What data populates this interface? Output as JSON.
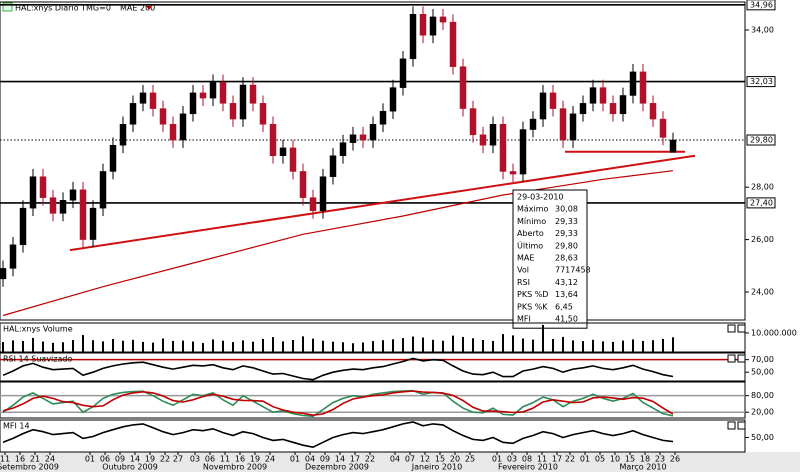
{
  "chart_data": [
    {
      "type": "candlestick",
      "title": "HAL:xnys Diário TMG=0",
      "ylim": [
        22.93,
        35.03
      ],
      "yticks": [
        {
          "value": 24,
          "label": "24,00"
        },
        {
          "value": 26,
          "label": "26,00"
        },
        {
          "value": 28,
          "label": "28,00"
        },
        {
          "value": 34,
          "label": "34,00"
        }
      ],
      "up_color": "#000000",
      "down_color": "#b0102a",
      "open": [
        24.5,
        24.9,
        25.8,
        27.2,
        28.4,
        27.6,
        27.0,
        27.5,
        27.9,
        26.0,
        27.2,
        28.6,
        29.6,
        30.4,
        31.2,
        31.6,
        31.0,
        30.4,
        29.8,
        30.8,
        31.6,
        31.4,
        32.0,
        31.2,
        30.6,
        31.9,
        31.2,
        30.4,
        29.2,
        29.5,
        28.6,
        27.6,
        27.1,
        28.4,
        29.2,
        29.7,
        30.0,
        29.8,
        30.4,
        30.9,
        31.8,
        32.9,
        34.6,
        33.8,
        34.5,
        34.3,
        32.6,
        31.0,
        30.0,
        29.6,
        30.4,
        28.6,
        28.5,
        30.2,
        30.6,
        31.6,
        31.0,
        29.8,
        30.8,
        31.2,
        31.8,
        31.2,
        30.8,
        31.5,
        32.4,
        31.2,
        30.6,
        29.33
      ],
      "high": [
        25.2,
        26.1,
        27.5,
        28.7,
        28.7,
        27.9,
        27.8,
        28.2,
        28.2,
        27.5,
        28.9,
        29.9,
        30.7,
        31.5,
        31.9,
        31.9,
        31.3,
        30.7,
        31.1,
        31.9,
        31.9,
        32.3,
        32.3,
        31.5,
        32.2,
        32.2,
        31.5,
        30.7,
        29.8,
        29.8,
        28.9,
        27.9,
        28.7,
        29.5,
        30.0,
        30.3,
        30.3,
        30.7,
        31.2,
        32.1,
        33.2,
        34.9,
        34.9,
        34.8,
        34.8,
        34.6,
        32.9,
        31.3,
        30.3,
        30.7,
        30.7,
        28.9,
        30.5,
        30.9,
        31.9,
        31.9,
        31.3,
        31.1,
        31.5,
        32.1,
        32.1,
        31.5,
        31.8,
        32.7,
        32.7,
        31.5,
        30.9,
        30.08
      ],
      "low": [
        24.2,
        24.6,
        25.5,
        26.9,
        27.3,
        26.7,
        26.7,
        27.2,
        25.7,
        25.7,
        26.9,
        28.3,
        29.3,
        30.1,
        30.9,
        30.7,
        30.1,
        29.5,
        29.5,
        30.5,
        31.1,
        31.1,
        30.9,
        30.3,
        30.3,
        30.9,
        30.1,
        28.9,
        28.9,
        28.3,
        27.3,
        26.8,
        26.8,
        28.1,
        28.9,
        29.4,
        29.5,
        29.5,
        30.1,
        30.6,
        31.5,
        32.6,
        33.5,
        33.5,
        34.0,
        32.3,
        30.7,
        29.7,
        29.3,
        29.3,
        28.3,
        28.2,
        28.2,
        29.9,
        30.3,
        30.7,
        29.5,
        29.5,
        30.5,
        30.9,
        30.9,
        30.5,
        30.5,
        31.2,
        30.9,
        30.3,
        29.6,
        29.33
      ],
      "close": [
        24.9,
        25.8,
        27.2,
        28.4,
        27.6,
        27.0,
        27.5,
        27.9,
        26.0,
        27.2,
        28.6,
        29.6,
        30.4,
        31.2,
        31.6,
        31.0,
        30.4,
        29.8,
        30.8,
        31.6,
        31.4,
        32.0,
        31.2,
        30.6,
        31.9,
        31.2,
        30.4,
        29.2,
        29.5,
        28.6,
        27.6,
        27.1,
        28.4,
        29.2,
        29.7,
        30.0,
        29.8,
        30.4,
        30.9,
        31.8,
        32.9,
        34.6,
        33.8,
        34.5,
        34.3,
        32.6,
        31.0,
        30.0,
        29.6,
        30.4,
        28.6,
        28.5,
        30.2,
        30.6,
        31.6,
        31.0,
        29.8,
        30.8,
        31.2,
        31.8,
        31.2,
        30.8,
        31.5,
        32.4,
        31.2,
        30.6,
        29.9,
        29.8
      ],
      "series": [
        {
          "name": "MAE 200",
          "color": "#c00000",
          "x": [
            0,
            10,
            20,
            30,
            40,
            45,
            50,
            55,
            60,
            67
          ],
          "values": [
            23.1,
            24.2,
            25.2,
            26.2,
            26.9,
            27.3,
            27.7,
            28.0,
            28.3,
            28.63
          ]
        }
      ],
      "trendlines": [
        {
          "color": "#d01010",
          "x": [
            6.7,
            69.2
          ],
          "values": [
            25.6,
            29.2
          ]
        },
        {
          "color": "#d01010",
          "x": [
            56.2,
            68.2
          ],
          "values": [
            29.35,
            29.35
          ]
        }
      ],
      "levels": [
        {
          "value": 34.96,
          "label": "34,96",
          "style": "solid"
        },
        {
          "value": 32.03,
          "label": "32,03",
          "style": "solid"
        },
        {
          "value": 29.8,
          "label": "29,80",
          "style": "dotted"
        },
        {
          "value": 27.4,
          "label": "27,40",
          "style": "solid"
        }
      ],
      "info_box": {
        "date": "29-03-2010",
        "rows": [
          {
            "label": "Máximo",
            "value": "30,08",
            "color": "#000000"
          },
          {
            "label": "Mínimo",
            "value": "29,33",
            "color": "#000000"
          },
          {
            "label": "Aberto",
            "value": "29,33",
            "color": "#000000"
          },
          {
            "label": "Último",
            "value": "29,80",
            "color": "#000000"
          },
          {
            "label": "MAE",
            "value": "28,63",
            "color": "#c00000"
          },
          {
            "label": "Vol",
            "value": "7717458",
            "color": "#000000"
          },
          {
            "label": "RSI",
            "value": "43,12",
            "color": "#000000"
          },
          {
            "label": "PKS %D",
            "value": "13,64",
            "color": "#c00000"
          },
          {
            "label": "PKS %K",
            "value": "6,45",
            "color": "#2e8b57"
          },
          {
            "label": "MFI",
            "value": "41,50",
            "color": "#000000"
          }
        ]
      }
    },
    {
      "type": "bar",
      "title": "HAL:xnys Volume",
      "ylim": [
        0,
        14700000
      ],
      "yticks": [
        {
          "value": 10000000,
          "label": "10.000.000"
        }
      ],
      "color": "#000000",
      "values": [
        5200000,
        6100000,
        5800000,
        7400000,
        5500000,
        4800000,
        5100000,
        6300000,
        8900000,
        6200000,
        5600000,
        6800000,
        5900000,
        6400000,
        5300000,
        4900000,
        7100000,
        5800000,
        6000000,
        5500000,
        4700000,
        6600000,
        5900000,
        5200000,
        6100000,
        5400000,
        6900000,
        7800000,
        5600000,
        6300000,
        8200000,
        7000000,
        5900000,
        5400000,
        5100000,
        4600000,
        5000000,
        5700000,
        6200000,
        6700000,
        7300000,
        8100000,
        7600000,
        6400000,
        5900000,
        8600000,
        7900000,
        7200000,
        6300000,
        5800000,
        9400000,
        8700000,
        7100000,
        6500000,
        14200000,
        6800000,
        7900000,
        6100000,
        5700000,
        6400000,
        5600000,
        5300000,
        6000000,
        6600000,
        5800000,
        6200000,
        6900000,
        7717458
      ]
    },
    {
      "type": "line",
      "title": "RSI 14 Suavizado",
      "ylim": [
        36,
        79
      ],
      "yticks": [
        {
          "value": 70,
          "label": "70,00"
        },
        {
          "value": 50,
          "label": "50,00"
        }
      ],
      "ref_lines": [
        {
          "value": 70,
          "color": "#c00000"
        }
      ],
      "series": [
        {
          "color": "#000000",
          "values": [
            45,
            52,
            60,
            64,
            58,
            54,
            55,
            56,
            45,
            50,
            56,
            60,
            63,
            65,
            66,
            62,
            58,
            55,
            58,
            61,
            60,
            62,
            57,
            54,
            60,
            57,
            52,
            47,
            48,
            44,
            40,
            38,
            45,
            50,
            53,
            55,
            54,
            57,
            59,
            63,
            67,
            72,
            68,
            70,
            69,
            60,
            52,
            47,
            46,
            50,
            43,
            43,
            52,
            55,
            59,
            56,
            50,
            55,
            57,
            60,
            56,
            54,
            57,
            61,
            55,
            51,
            46,
            43.12
          ]
        }
      ]
    },
    {
      "type": "line",
      "ylim": [
        -1,
        126
      ],
      "yticks": [
        {
          "value": 80,
          "label": "80,00"
        },
        {
          "value": 20,
          "label": "20,00"
        }
      ],
      "ref_lines": [
        {
          "value": 80,
          "color": "#999999"
        },
        {
          "value": 20,
          "color": "#999999"
        }
      ],
      "series": [
        {
          "color": "#2e8b57",
          "values": [
            20,
            45,
            75,
            90,
            70,
            50,
            55,
            60,
            20,
            40,
            70,
            85,
            92,
            95,
            96,
            80,
            60,
            45,
            65,
            85,
            80,
            90,
            65,
            45,
            80,
            60,
            40,
            20,
            25,
            15,
            8,
            5,
            30,
            55,
            70,
            80,
            75,
            85,
            90,
            95,
            97,
            98,
            85,
            92,
            90,
            60,
            35,
            20,
            18,
            35,
            12,
            10,
            40,
            55,
            75,
            65,
            40,
            60,
            70,
            85,
            70,
            60,
            70,
            88,
            55,
            35,
            15,
            6.45
          ]
        },
        {
          "color": "#c00000",
          "values": [
            25,
            35,
            50,
            70,
            78,
            70,
            58,
            55,
            45,
            40,
            43,
            65,
            82,
            90,
            94,
            90,
            79,
            62,
            57,
            65,
            77,
            85,
            78,
            67,
            63,
            62,
            60,
            40,
            28,
            20,
            16,
            9,
            14,
            30,
            52,
            68,
            75,
            80,
            83,
            90,
            94,
            97,
            93,
            92,
            89,
            81,
            62,
            38,
            24,
            24,
            22,
            19,
            21,
            35,
            57,
            65,
            60,
            55,
            57,
            72,
            75,
            72,
            67,
            73,
            71,
            59,
            35,
            13.64
          ]
        }
      ]
    },
    {
      "type": "line",
      "title": "MFI 14",
      "ylim": [
        20,
        84
      ],
      "yticks": [
        {
          "value": 50,
          "label": "50,00"
        }
      ],
      "series": [
        {
          "color": "#000000",
          "values": [
            40,
            48,
            58,
            66,
            62,
            56,
            58,
            60,
            48,
            52,
            60,
            66,
            72,
            76,
            78,
            70,
            62,
            56,
            60,
            66,
            64,
            68,
            60,
            54,
            62,
            58,
            50,
            44,
            46,
            40,
            34,
            30,
            40,
            50,
            56,
            60,
            58,
            62,
            66,
            72,
            78,
            82,
            74,
            78,
            76,
            64,
            54,
            46,
            44,
            50,
            40,
            38,
            48,
            54,
            62,
            58,
            50,
            56,
            60,
            64,
            58,
            54,
            58,
            64,
            56,
            50,
            44,
            41.5
          ]
        }
      ]
    }
  ],
  "x_axis": {
    "xlim": [
      -0.3,
      74.2
    ],
    "xticks": [
      {
        "value": 0.2,
        "label": "11"
      },
      {
        "value": 1.7,
        "label": "16"
      },
      {
        "value": 3.2,
        "label": "21"
      },
      {
        "value": 4.7,
        "label": "24"
      },
      {
        "value": 8.7,
        "label": "01"
      },
      {
        "value": 10.2,
        "label": "06"
      },
      {
        "value": 11.7,
        "label": "09"
      },
      {
        "value": 13.2,
        "label": "14"
      },
      {
        "value": 14.7,
        "label": "19"
      },
      {
        "value": 16.2,
        "label": "22"
      },
      {
        "value": 17.5,
        "label": "27"
      },
      {
        "value": 19.2,
        "label": "03"
      },
      {
        "value": 20.7,
        "label": "06"
      },
      {
        "value": 22.2,
        "label": "11"
      },
      {
        "value": 23.7,
        "label": "16"
      },
      {
        "value": 25.2,
        "label": "19"
      },
      {
        "value": 26.7,
        "label": "24"
      },
      {
        "value": 29.2,
        "label": "01"
      },
      {
        "value": 30.7,
        "label": "04"
      },
      {
        "value": 32.2,
        "label": "09"
      },
      {
        "value": 33.7,
        "label": "14"
      },
      {
        "value": 35.2,
        "label": "17"
      },
      {
        "value": 36.7,
        "label": "22"
      },
      {
        "value": 39.2,
        "label": "04"
      },
      {
        "value": 40.7,
        "label": "07"
      },
      {
        "value": 42.2,
        "label": "12"
      },
      {
        "value": 43.7,
        "label": "15"
      },
      {
        "value": 45.2,
        "label": "20"
      },
      {
        "value": 46.7,
        "label": "25"
      },
      {
        "value": 49.4,
        "label": "01"
      },
      {
        "value": 50.9,
        "label": "03"
      },
      {
        "value": 52.4,
        "label": "08"
      },
      {
        "value": 53.9,
        "label": "11"
      },
      {
        "value": 55.4,
        "label": "17"
      },
      {
        "value": 56.7,
        "label": "22"
      },
      {
        "value": 58.2,
        "label": "01"
      },
      {
        "value": 59.7,
        "label": "05"
      },
      {
        "value": 61.2,
        "label": "10"
      },
      {
        "value": 62.7,
        "label": "15"
      },
      {
        "value": 64.2,
        "label": "18"
      },
      {
        "value": 65.7,
        "label": "23"
      },
      {
        "value": 67.2,
        "label": "26"
      }
    ],
    "month_labels": [
      {
        "value": 2.5,
        "label": "Setembro 2009"
      },
      {
        "value": 12.7,
        "label": "Outubro 2009"
      },
      {
        "value": 23.2,
        "label": "Novembro 2009"
      },
      {
        "value": 33.4,
        "label": "Dezembro 2009"
      },
      {
        "value": 43.4,
        "label": "Janeiro 2010"
      },
      {
        "value": 52.5,
        "label": "Fevereiro 2010"
      },
      {
        "value": 64.0,
        "label": "Março 2010"
      }
    ]
  }
}
